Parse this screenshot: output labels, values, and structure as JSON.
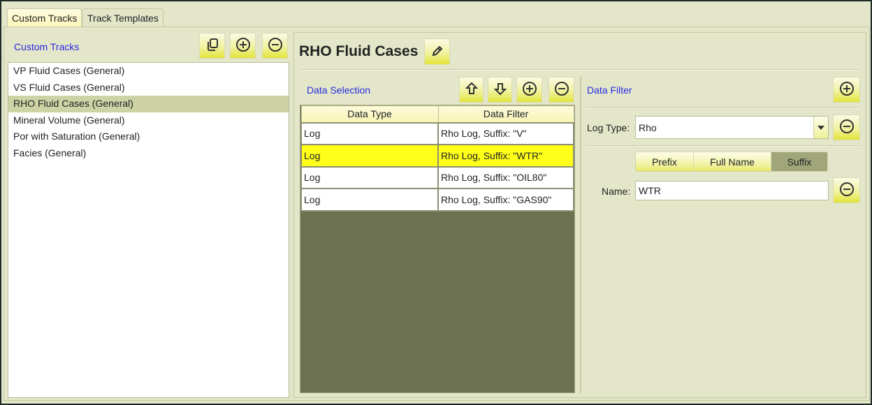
{
  "tabs": [
    {
      "label": "Custom Tracks",
      "active": true
    },
    {
      "label": "Track Templates",
      "active": false
    }
  ],
  "left": {
    "title": "Custom Tracks",
    "buttons": {
      "copy": "copy-icon",
      "add": "plus-circle-icon",
      "remove": "minus-circle-icon"
    },
    "items": [
      "VP Fluid Cases (General)",
      "VS Fluid Cases (General)",
      "RHO Fluid Cases (General)",
      "Mineral Volume (General)",
      "Por with Saturation (General)",
      "Facies (General)"
    ],
    "selected_index": 2
  },
  "detail": {
    "title": "RHO Fluid Cases",
    "data_selection": {
      "title": "Data Selection",
      "columns": [
        "Data Type",
        "Data Filter"
      ],
      "rows": [
        [
          "Log",
          "Rho Log, Suffix: \"V\""
        ],
        [
          "Log",
          "Rho Log, Suffix: \"WTR\""
        ],
        [
          "Log",
          "Rho Log, Suffix: \"OIL80\""
        ],
        [
          "Log",
          "Rho Log, Suffix: \"GAS90\""
        ]
      ],
      "highlighted_row": 1
    },
    "data_filter": {
      "title": "Data Filter",
      "log_type_label": "Log Type:",
      "log_type_value": "Rho",
      "modes": [
        "Prefix",
        "Full Name",
        "Suffix"
      ],
      "active_mode": "Suffix",
      "name_label": "Name:",
      "name_value": "WTR"
    }
  },
  "colors": {
    "background": "#e3e6c9",
    "highlight": "#ffff1a",
    "selected_list": "#cdd3a4",
    "section_title": "#2a2ae0"
  }
}
